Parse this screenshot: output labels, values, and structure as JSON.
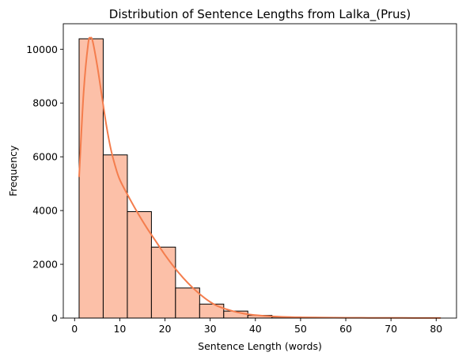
{
  "chart_data": {
    "type": "bar",
    "title": "Distribution of Sentence Lengths from Lalka_(Prus)",
    "xlabel": "Sentence Length (words)",
    "ylabel": "Frequency",
    "xlim": [
      -2.5,
      84.5
    ],
    "ylim": [
      0,
      10950
    ],
    "xticks": [
      0,
      10,
      20,
      30,
      40,
      50,
      60,
      70,
      80
    ],
    "yticks": [
      0,
      2000,
      4000,
      6000,
      8000,
      10000
    ],
    "grid": false,
    "legend": "none",
    "bins": [
      {
        "x0": 1.0,
        "x1": 6.33,
        "count": 10390
      },
      {
        "x0": 6.33,
        "x1": 11.67,
        "count": 6070
      },
      {
        "x0": 11.67,
        "x1": 17.0,
        "count": 3960
      },
      {
        "x0": 17.0,
        "x1": 22.33,
        "count": 2640
      },
      {
        "x0": 22.33,
        "x1": 27.67,
        "count": 1120
      },
      {
        "x0": 27.67,
        "x1": 33.0,
        "count": 520
      },
      {
        "x0": 33.0,
        "x1": 38.33,
        "count": 260
      },
      {
        "x0": 38.33,
        "x1": 43.67,
        "count": 100
      },
      {
        "x0": 43.67,
        "x1": 49.0,
        "count": 40
      },
      {
        "x0": 49.0,
        "x1": 54.33,
        "count": 20
      },
      {
        "x0": 54.33,
        "x1": 59.67,
        "count": 10
      },
      {
        "x0": 59.67,
        "x1": 65.0,
        "count": 5
      },
      {
        "x0": 65.0,
        "x1": 70.33,
        "count": 3
      },
      {
        "x0": 70.33,
        "x1": 75.67,
        "count": 2
      },
      {
        "x0": 75.67,
        "x1": 81.0,
        "count": 1
      }
    ],
    "kde": {
      "x": [
        1,
        2,
        3,
        3.5,
        4,
        5,
        6,
        7,
        8,
        9,
        10,
        12,
        14,
        16,
        18,
        20,
        22,
        24,
        26,
        28,
        30,
        32,
        35,
        38,
        42,
        46,
        50,
        55,
        60,
        65,
        70,
        75,
        81
      ],
      "y": [
        5250,
        8400,
        10200,
        10420,
        10300,
        9400,
        8300,
        7200,
        6300,
        5650,
        5150,
        4500,
        3900,
        3350,
        2850,
        2350,
        1900,
        1500,
        1150,
        850,
        600,
        420,
        260,
        150,
        80,
        45,
        28,
        18,
        12,
        9,
        7,
        5,
        4
      ]
    },
    "colors": {
      "bar_fill": "#fcc0a8",
      "bar_edge": "#000000",
      "kde_line": "#f47d4d"
    }
  }
}
